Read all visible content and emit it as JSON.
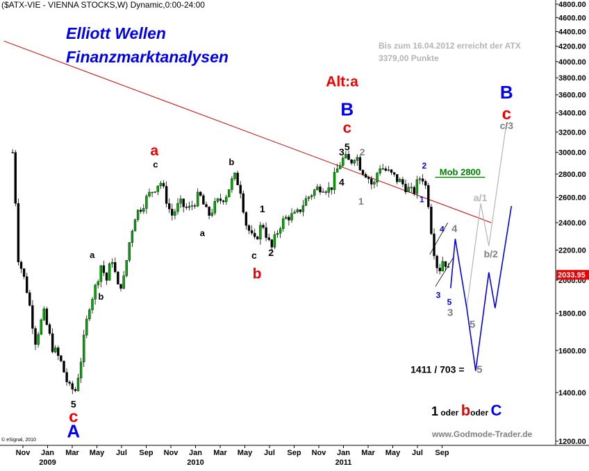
{
  "chart_data": {
    "type": "candlestick",
    "title": "($ATX-VIE - VIENNA STOCKS,W) Dynamic,0:00-24:00",
    "heading_line1": "Elliott Wellen",
    "heading_line2": "Finanzmarktanalysen",
    "note_line1": "Bis zum 16.04.2012 erreicht der ATX",
    "note_line2": "3379,00 Punkte",
    "credit": "www.Godmode-Trader.de",
    "copyright": "© eSignal, 2010",
    "last_price": "2033.95",
    "ylim": [
      1200,
      4800
    ],
    "y_scale": "log",
    "y_ticks": [
      "4800.00",
      "4600.00",
      "4400.00",
      "4200.00",
      "4000.00",
      "3800.00",
      "3600.00",
      "3400.00",
      "3200.00",
      "3000.00",
      "2800.00",
      "2600.00",
      "2400.00",
      "2200.00",
      "2000.00",
      "1800.00",
      "1600.00",
      "1400.00",
      "1200.00"
    ],
    "x_ticks": [
      {
        "label": "Nov",
        "year": ""
      },
      {
        "label": "Jan",
        "year": "2009"
      },
      {
        "label": "Mar",
        "year": ""
      },
      {
        "label": "May",
        "year": ""
      },
      {
        "label": "Jul",
        "year": ""
      },
      {
        "label": "Sep",
        "year": ""
      },
      {
        "label": "Nov",
        "year": ""
      },
      {
        "label": "Jan",
        "year": "2010"
      },
      {
        "label": "Mar",
        "year": ""
      },
      {
        "label": "May",
        "year": ""
      },
      {
        "label": "Jul",
        "year": ""
      },
      {
        "label": "Sep",
        "year": ""
      },
      {
        "label": "Nov",
        "year": ""
      },
      {
        "label": "Jan",
        "year": "2011"
      },
      {
        "label": "Mar",
        "year": ""
      },
      {
        "label": "May",
        "year": ""
      },
      {
        "label": "Jul",
        "year": ""
      },
      {
        "label": "Sep",
        "year": ""
      }
    ],
    "price_path": [
      [
        "2008-10-06",
        3000
      ],
      [
        "2008-10-20",
        2150
      ],
      [
        "2008-11-10",
        1950
      ],
      [
        "2008-12-01",
        1650
      ],
      [
        "2008-12-22",
        1800
      ],
      [
        "2009-01-12",
        1620
      ],
      [
        "2009-02-02",
        1550
      ],
      [
        "2009-02-23",
        1420
      ],
      [
        "2009-03-09",
        1410
      ],
      [
        "2009-03-23",
        1560
      ],
      [
        "2009-04-13",
        1850
      ],
      [
        "2009-04-27",
        1950
      ],
      [
        "2009-05-11",
        2100
      ],
      [
        "2009-05-25",
        2000
      ],
      [
        "2009-06-08",
        2150
      ],
      [
        "2009-06-22",
        1950
      ],
      [
        "2009-07-06",
        2000
      ],
      [
        "2009-07-20",
        2250
      ],
      [
        "2009-08-03",
        2450
      ],
      [
        "2009-08-24",
        2550
      ],
      [
        "2009-09-14",
        2650
      ],
      [
        "2009-10-05",
        2740
      ],
      [
        "2009-10-19",
        2600
      ],
      [
        "2009-11-02",
        2450
      ],
      [
        "2009-11-23",
        2550
      ],
      [
        "2009-12-14",
        2500
      ],
      [
        "2010-01-11",
        2620
      ],
      [
        "2010-02-01",
        2450
      ],
      [
        "2010-02-22",
        2550
      ],
      [
        "2010-03-15",
        2620
      ],
      [
        "2010-04-05",
        2780
      ],
      [
        "2010-04-19",
        2700
      ],
      [
        "2010-05-03",
        2400
      ],
      [
        "2010-05-24",
        2250
      ],
      [
        "2010-06-14",
        2400
      ],
      [
        "2010-07-05",
        2200
      ],
      [
        "2010-07-26",
        2380
      ],
      [
        "2010-08-16",
        2450
      ],
      [
        "2010-09-06",
        2450
      ],
      [
        "2010-09-27",
        2570
      ],
      [
        "2010-10-18",
        2650
      ],
      [
        "2010-11-08",
        2700
      ],
      [
        "2010-11-29",
        2660
      ],
      [
        "2010-12-20",
        2880
      ],
      [
        "2011-01-03",
        2950
      ],
      [
        "2011-01-17",
        2900
      ],
      [
        "2011-01-31",
        2990
      ],
      [
        "2011-02-14",
        2850
      ],
      [
        "2011-02-28",
        2800
      ],
      [
        "2011-03-14",
        2680
      ],
      [
        "2011-03-28",
        2880
      ],
      [
        "2011-04-18",
        2820
      ],
      [
        "2011-05-09",
        2760
      ],
      [
        "2011-05-30",
        2700
      ],
      [
        "2011-06-20",
        2630
      ],
      [
        "2011-07-11",
        2800
      ],
      [
        "2011-07-25",
        2650
      ],
      [
        "2011-08-08",
        2250
      ],
      [
        "2011-08-22",
        2050
      ],
      [
        "2011-09-05",
        2150
      ],
      [
        "2011-09-19",
        2033.95
      ]
    ],
    "trendline": [
      [
        "2008-09-15",
        4270
      ],
      [
        "2011-12-31",
        2400
      ]
    ],
    "channel_lines": [
      [
        [
          "2011-08-01",
          2170
        ],
        [
          "2011-09-15",
          2400
        ]
      ],
      [
        [
          "2011-08-15",
          1960
        ],
        [
          "2011-09-29",
          2150
        ]
      ]
    ],
    "projection_blue": [
      [
        "2011-09-22",
        1950
      ],
      [
        "2011-10-03",
        2280
      ],
      [
        "2011-11-01",
        1830
      ],
      [
        "2011-11-23",
        1500
      ],
      [
        "2011-12-25",
        2050
      ],
      [
        "2012-01-10",
        1830
      ],
      [
        "2012-02-20",
        2530
      ]
    ],
    "projection_gray": [
      [
        "2011-11-01",
        1830
      ],
      [
        "2011-12-05",
        2550
      ],
      [
        "2011-12-25",
        2230
      ],
      [
        "2012-02-08",
        3300
      ]
    ],
    "labels": [
      {
        "text": "Alt:a",
        "d": "2010-12-28",
        "p": 3700,
        "color": "#ee0000",
        "size": 21
      },
      {
        "text": "B",
        "d": "2011-01-10",
        "p": 3370,
        "color": "#0000ee",
        "size": 26
      },
      {
        "text": "c",
        "d": "2011-01-10",
        "p": 3190,
        "color": "#ee0000",
        "size": 22
      },
      {
        "text": "5",
        "d": "2011-01-10",
        "p": 3020,
        "color": "#000000",
        "size": 14
      },
      {
        "text": "3",
        "d": "2010-12-27",
        "p": 2970,
        "color": "#000000",
        "size": 14
      },
      {
        "text": "4",
        "d": "2010-12-27",
        "p": 2700,
        "color": "#000000",
        "size": 14
      },
      {
        "text": "2",
        "d": "2011-02-17",
        "p": 2970,
        "color": "#7f7f7f",
        "size": 14
      },
      {
        "text": "1",
        "d": "2011-02-14",
        "p": 2540,
        "color": "#7f7f7f",
        "size": 14
      },
      {
        "text": "2",
        "d": "2011-07-18",
        "p": 2850,
        "color": "#0000ee",
        "size": 12
      },
      {
        "text": "1",
        "d": "2011-07-12",
        "p": 2560,
        "color": "#0000ee",
        "size": 12
      },
      {
        "text": "Mob 2800",
        "d": "2011-10-15",
        "p": 2790,
        "color": "#008000",
        "size": 13
      },
      {
        "text": "4",
        "d": "2011-08-31",
        "p": 2330,
        "color": "#0000ee",
        "size": 12
      },
      {
        "text": "4",
        "d": "2011-10-01",
        "p": 2330,
        "color": "#7f7f7f",
        "size": 15
      },
      {
        "text": "3",
        "d": "2011-08-22",
        "p": 1890,
        "color": "#0000ee",
        "size": 12
      },
      {
        "text": "5",
        "d": "2011-09-19",
        "p": 1850,
        "color": "#0000ee",
        "size": 12
      },
      {
        "text": "3",
        "d": "2011-09-21",
        "p": 1785,
        "color": "#7f7f7f",
        "size": 15
      },
      {
        "text": "5",
        "d": "2011-11-15",
        "p": 1720,
        "color": "#7f7f7f",
        "size": 15
      },
      {
        "text": "a/1",
        "d": "2011-12-04",
        "p": 2570,
        "color": "#b4b4b4",
        "size": 14
      },
      {
        "text": "b/2",
        "d": "2011-12-30",
        "p": 2150,
        "color": "#7f7f7f",
        "size": 14
      },
      {
        "text": "c/3",
        "d": "2012-02-08",
        "p": 3230,
        "color": "#7f7f7f",
        "size": 14
      },
      {
        "text": "c",
        "d": "2012-02-08",
        "p": 3330,
        "color": "#ee0000",
        "size": 24
      },
      {
        "text": "B",
        "d": "2012-02-08",
        "p": 3560,
        "color": "#0000ee",
        "size": 26
      },
      {
        "text": "1411 / 703 =",
        "d": "2011-08-20",
        "p": 1490,
        "color": "#000000",
        "size": 14
      },
      {
        "text": "5",
        "d": "2011-12-02",
        "p": 1490,
        "color": "#7f7f7f",
        "size": 15
      },
      {
        "text": "a",
        "d": "2009-09-21",
        "p": 2970,
        "color": "#ee0000",
        "size": 21
      },
      {
        "text": "c",
        "d": "2009-09-24",
        "p": 2860,
        "color": "#000000",
        "size": 13
      },
      {
        "text": "b",
        "d": "2010-03-29",
        "p": 2880,
        "color": "#000000",
        "size": 13
      },
      {
        "text": "a",
        "d": "2010-01-18",
        "p": 2300,
        "color": "#000000",
        "size": 13
      },
      {
        "text": "1",
        "d": "2010-06-14",
        "p": 2480,
        "color": "#000000",
        "size": 14
      },
      {
        "text": "c",
        "d": "2010-05-24",
        "p": 2140,
        "color": "#000000",
        "size": 14
      },
      {
        "text": "2",
        "d": "2010-07-05",
        "p": 2160,
        "color": "#000000",
        "size": 14
      },
      {
        "text": "b",
        "d": "2010-05-31",
        "p": 2010,
        "color": "#ee0000",
        "size": 21
      },
      {
        "text": "a",
        "d": "2009-04-20",
        "p": 2145,
        "color": "#000000",
        "size": 13
      },
      {
        "text": "b",
        "d": "2009-05-11",
        "p": 1880,
        "color": "#000000",
        "size": 13
      },
      {
        "text": "5",
        "d": "2009-03-04",
        "p": 1335,
        "color": "#000000",
        "size": 14
      },
      {
        "text": "c",
        "d": "2009-03-04",
        "p": 1275,
        "color": "#ee0000",
        "size": 24
      },
      {
        "text": "A",
        "d": "2009-03-04",
        "p": 1215,
        "color": "#0000ee",
        "size": 26
      }
    ],
    "legend": [
      {
        "text": "1",
        "color": "#000000",
        "size": 18
      },
      {
        "text": " oder ",
        "color": "#000000",
        "size": 12
      },
      {
        "text": "b",
        "color": "#ee0000",
        "size": 22
      },
      {
        "text": "oder ",
        "color": "#000000",
        "size": 12
      },
      {
        "text": "C",
        "color": "#0000ee",
        "size": 22
      }
    ],
    "colors": {
      "up": "#00aa00",
      "down": "#000000",
      "trendline": "#cc0000",
      "projection": "#0000ee",
      "projection_alt": "#b4b4b4",
      "last_price_bg": "#ee0000"
    }
  }
}
